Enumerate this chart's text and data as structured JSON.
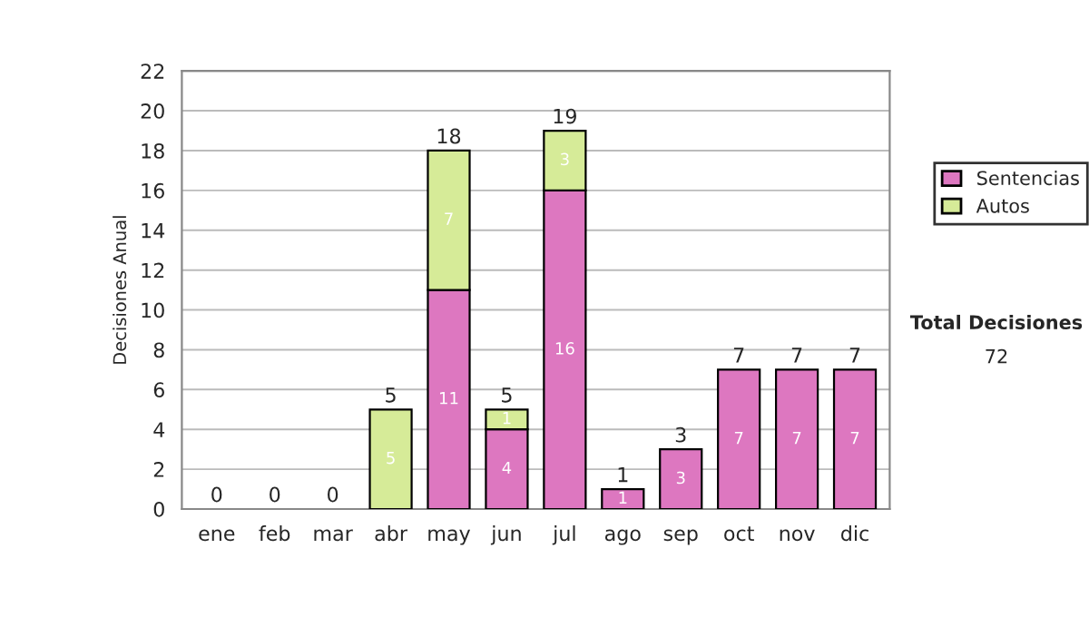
{
  "chart_data": {
    "type": "bar",
    "stacked": true,
    "ylabel": "Decisiones Anual",
    "categories": [
      "ene",
      "feb",
      "mar",
      "abr",
      "may",
      "jun",
      "jul",
      "ago",
      "sep",
      "oct",
      "nov",
      "dic"
    ],
    "series": [
      {
        "name": "Sentencias",
        "color": "#dd77c0",
        "values": [
          0,
          0,
          0,
          0,
          11,
          4,
          16,
          1,
          3,
          7,
          7,
          7
        ],
        "value_labels": [
          null,
          null,
          null,
          null,
          "11",
          "4",
          "16",
          "1",
          "3",
          "7",
          "7",
          "7"
        ]
      },
      {
        "name": "Autos",
        "color": "#d6eb98",
        "values": [
          0,
          0,
          0,
          5,
          7,
          1,
          3,
          0,
          0,
          0,
          0,
          0
        ],
        "value_labels": [
          null,
          null,
          null,
          "5",
          "7",
          "1",
          "3",
          null,
          null,
          null,
          null,
          null
        ]
      }
    ],
    "totals": [
      "0",
      "0",
      "0",
      "5",
      "18",
      "5",
      "19",
      "1",
      "3",
      "7",
      "7",
      "7"
    ],
    "ylim": [
      0,
      22
    ],
    "yticks": [
      0,
      2,
      4,
      6,
      8,
      10,
      12,
      14,
      16,
      18,
      20,
      22
    ],
    "grid": "y",
    "legend": "right",
    "annotations": [
      "Total Decisiones",
      "72"
    ]
  }
}
